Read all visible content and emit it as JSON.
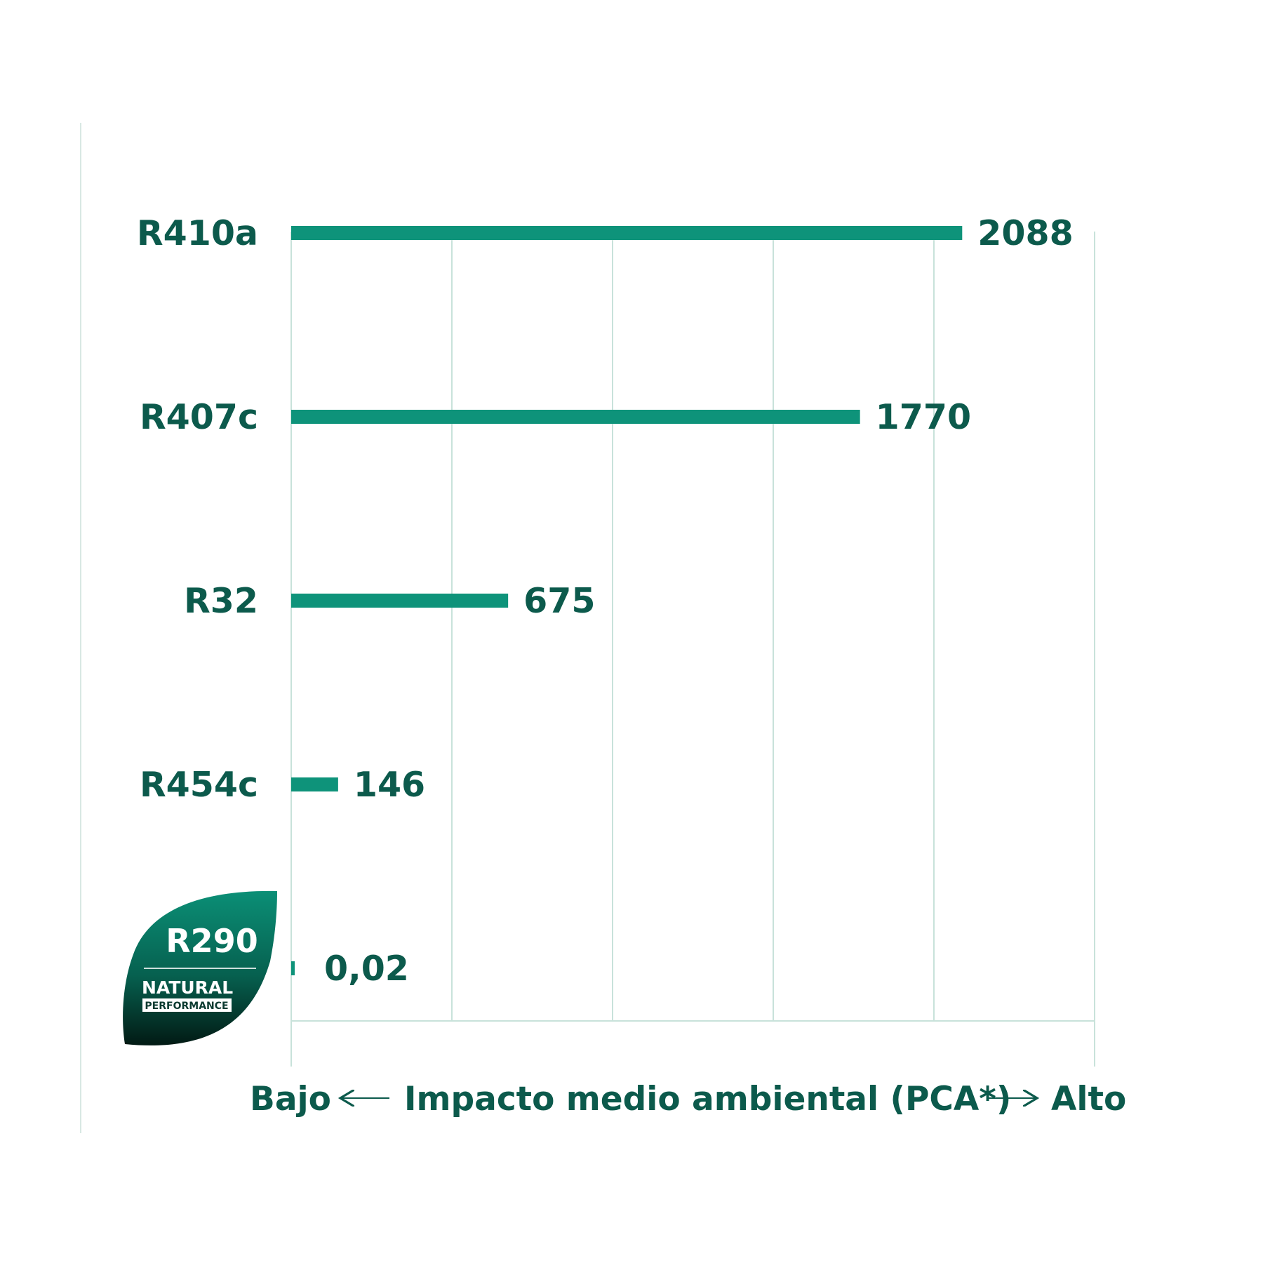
{
  "chart_data": {
    "type": "bar",
    "orientation": "horizontal",
    "categories": [
      "R410a",
      "R407c",
      "R32",
      "R454c",
      "R290"
    ],
    "values": [
      2088,
      1770,
      675,
      146,
      0.02
    ],
    "value_labels": [
      "2088",
      "1770",
      "675",
      "146",
      "0,02"
    ],
    "xlim": [
      0,
      2500
    ],
    "grid": true,
    "axis": {
      "low_label": "Bajo",
      "title": "Impacto medio ambiental (PCA*)",
      "high_label": "Alto"
    },
    "highlight": {
      "category": "R290",
      "badge_title": "R290",
      "badge_line1": "NATURAL",
      "badge_line2": "PERFORMANCE"
    }
  },
  "colors": {
    "bar": "#0e937a",
    "text": "#0c5a4c",
    "grid": "#c8e2da",
    "badge_top": "#0b8f76",
    "badge_bottom": "#021a14"
  }
}
